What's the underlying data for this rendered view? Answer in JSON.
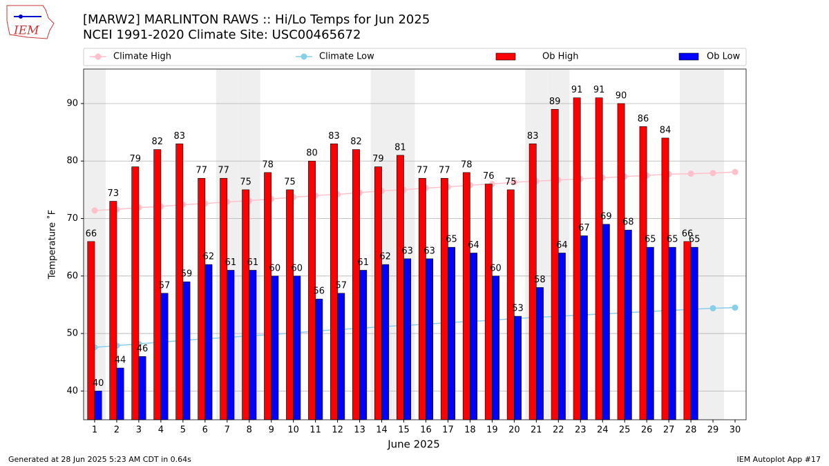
{
  "logo": "IEM",
  "footer_left": "Generated at 28 Jun 2025 5:23 AM CDT in 0.64s",
  "footer_right": "IEM Autoplot App #17",
  "chart_data": {
    "type": "bar",
    "title": "[MARW2] MARLINTON RAWS :: Hi/Lo Temps for Jun 2025",
    "subtitle": "NCEI 1991-2020 Climate Site: USC00465672",
    "x_label": "June 2025",
    "y_label": "Temperature ˚F",
    "categories": [
      "1",
      "2",
      "3",
      "4",
      "5",
      "6",
      "7",
      "8",
      "9",
      "10",
      "11",
      "12",
      "13",
      "14",
      "15",
      "16",
      "17",
      "18",
      "19",
      "20",
      "21",
      "22",
      "23",
      "24",
      "25",
      "26",
      "27",
      "28",
      "29",
      "30"
    ],
    "shaded_days": [
      "1",
      "7",
      "8",
      "14",
      "15",
      "21",
      "22",
      "28",
      "29"
    ],
    "ylim": [
      35,
      96
    ],
    "yticks": [
      40,
      50,
      60,
      70,
      80,
      90
    ],
    "grid": true,
    "series": [
      {
        "name": "Climate High",
        "type": "line",
        "color": "#ffc0cb",
        "values": [
          71.4,
          71.6,
          71.9,
          72.1,
          72.4,
          72.6,
          72.9,
          73.1,
          73.4,
          73.7,
          74.0,
          74.2,
          74.5,
          74.8,
          75.0,
          75.3,
          75.5,
          75.8,
          76.0,
          76.3,
          76.5,
          76.7,
          76.9,
          77.1,
          77.3,
          77.5,
          77.7,
          77.8,
          77.9,
          78.1
        ]
      },
      {
        "name": "Climate Low",
        "type": "line",
        "color": "#87ceeb",
        "values": [
          47.6,
          47.9,
          48.2,
          48.5,
          48.8,
          49.1,
          49.3,
          49.6,
          49.8,
          50.1,
          50.4,
          50.7,
          50.9,
          51.2,
          51.4,
          51.6,
          51.9,
          52.1,
          52.3,
          52.6,
          52.8,
          53.0,
          53.2,
          53.4,
          53.6,
          53.8,
          54.0,
          54.2,
          54.4,
          54.5
        ]
      },
      {
        "name": "Ob High",
        "type": "bar",
        "color": "#ff0000",
        "values": [
          66,
          73,
          79,
          82,
          83,
          77,
          77,
          75,
          78,
          75,
          80,
          83,
          82,
          79,
          81,
          77,
          77,
          78,
          76,
          75,
          83,
          89,
          91,
          91,
          90,
          86,
          84,
          66,
          null,
          null
        ]
      },
      {
        "name": "Ob Low",
        "type": "bar",
        "color": "#0000ff",
        "values": [
          40,
          44,
          46,
          57,
          59,
          62,
          61,
          61,
          60,
          60,
          56,
          57,
          61,
          62,
          63,
          63,
          65,
          64,
          60,
          53,
          58,
          64,
          67,
          69,
          68,
          65,
          65,
          65,
          null,
          null
        ]
      }
    ]
  }
}
